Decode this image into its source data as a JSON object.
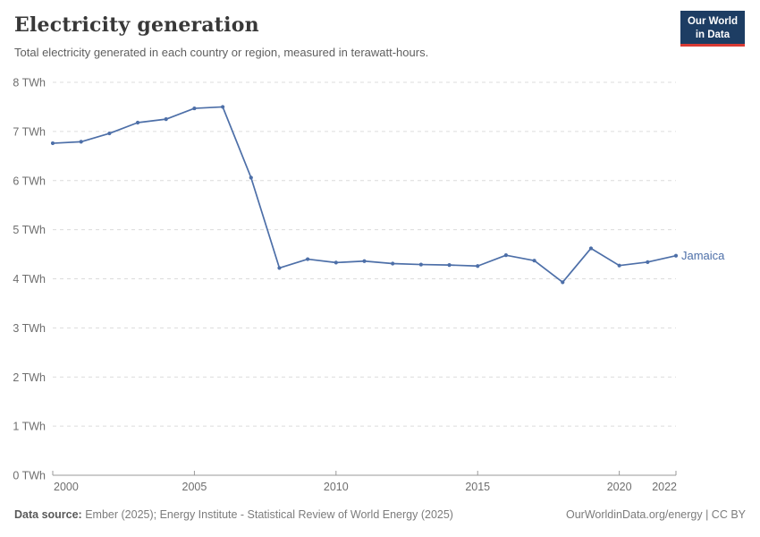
{
  "header": {
    "title": "Electricity generation",
    "subtitle": "Total electricity generated in each country or region, measured in terawatt-hours."
  },
  "logo": {
    "line1": "Our World",
    "line2": "in Data",
    "bg_color": "#1d3d63",
    "accent_color": "#d93a34"
  },
  "chart_data": {
    "type": "line",
    "title": "Electricity generation",
    "unit": "TWh",
    "x": [
      2000,
      2001,
      2002,
      2003,
      2004,
      2005,
      2006,
      2007,
      2008,
      2009,
      2010,
      2011,
      2012,
      2013,
      2014,
      2015,
      2016,
      2017,
      2018,
      2019,
      2020,
      2021,
      2022
    ],
    "series": [
      {
        "name": "Jamaica",
        "color": "#4d6fa8",
        "values": [
          6.76,
          6.79,
          6.96,
          7.18,
          7.25,
          7.47,
          7.5,
          6.06,
          4.22,
          4.4,
          4.33,
          4.36,
          4.31,
          4.29,
          4.28,
          4.26,
          4.48,
          4.37,
          3.93,
          4.62,
          4.27,
          4.34,
          4.47
        ]
      }
    ],
    "xlim": [
      2000,
      2022
    ],
    "ylim": [
      0,
      8
    ],
    "yticks": [
      0,
      1,
      2,
      3,
      4,
      5,
      6,
      7,
      8
    ],
    "xticks": [
      2000,
      2005,
      2010,
      2015,
      2020,
      2022
    ],
    "grid": "horizontal-dashed",
    "legend": "end-of-line-label",
    "colors": {
      "grid": "#dcdcdc",
      "axis": "#9a9a9a",
      "tick_label": "#6e6e6e"
    }
  },
  "footer": {
    "source_label": "Data source:",
    "source_text": "Ember (2025); Energy Institute - Statistical Review of World Energy (2025)",
    "right_text": "OurWorldinData.org/energy | CC BY"
  }
}
